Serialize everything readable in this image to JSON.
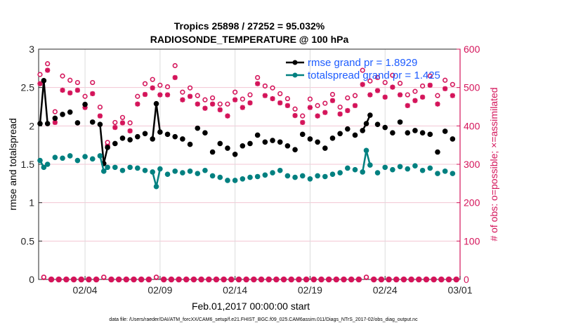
{
  "chart_data": {
    "type": "line",
    "title": "Tropics 25898 / 27252 = 95.032%",
    "subtitle": "RADIOSONDE_TEMPERATURE @ 100 hPa",
    "xlabel": "Feb.01,2017 00:00:00 start",
    "ylabel": "rmse and totalspread",
    "ylabel_right": "# of obs: o=possible; ×=assimilated",
    "footer": "data file: /Users/raeder/DAI/ATM_forcXX/CAM6_setup/f.e21.FHIST_BGC.f09_025.CAM6assim.011/Diags_NTrS_2017-02/obs_diag_output.nc",
    "xlim": [
      "2017-02-01",
      "2017-03-01"
    ],
    "ylim": [
      0,
      3
    ],
    "ylim_right": [
      0,
      600
    ],
    "grid": true,
    "legend_position": "top-right",
    "x_ticks": [
      {
        "date": "2017-02-04",
        "label": "02/04"
      },
      {
        "date": "2017-02-09",
        "label": "02/09"
      },
      {
        "date": "2017-02-14",
        "label": "02/14"
      },
      {
        "date": "2017-02-19",
        "label": "02/19"
      },
      {
        "date": "2017-02-24",
        "label": "02/24"
      },
      {
        "date": "2017-03-01",
        "label": "03/01"
      }
    ],
    "y_ticks": [
      "0",
      "0.5",
      "1",
      "1.5",
      "2",
      "2.5",
      "3"
    ],
    "y_ticks_right": [
      "0",
      "100",
      "200",
      "300",
      "400",
      "500",
      "600"
    ],
    "series": [
      {
        "name": "rmse grand pr = 1.8929",
        "key": "rmse",
        "color": "#000000"
      },
      {
        "name": "totalspread grand pr = 1.425",
        "key": "spread",
        "color": "#008080"
      }
    ],
    "obs_color": "#d4145a",
    "hours": [
      "00",
      "06",
      "12",
      "18"
    ],
    "days": [
      {
        "date": "2017-02-01",
        "rmse": [
          2.03,
          2.59,
          2.03,
          null
        ],
        "spread": [
          1.55,
          1.46,
          1.5,
          null
        ],
        "possible": [
          534,
          6,
          562,
          0
        ],
        "assimilated": [
          510,
          5,
          545,
          0
        ]
      },
      {
        "date": "2017-02-02",
        "rmse": [
          2.1,
          null,
          2.15,
          null
        ],
        "spread": [
          1.59,
          null,
          1.58,
          null
        ],
        "possible": [
          437,
          0,
          530,
          0
        ],
        "assimilated": [
          409,
          0,
          493,
          0
        ]
      },
      {
        "date": "2017-02-03",
        "rmse": [
          2.18,
          null,
          2.04,
          null
        ],
        "spread": [
          1.61,
          null,
          1.55,
          null
        ],
        "possible": [
          519,
          0,
          513,
          0
        ],
        "assimilated": [
          486,
          0,
          493,
          0
        ]
      },
      {
        "date": "2017-02-04",
        "rmse": [
          2.28,
          null,
          2.05,
          null
        ],
        "spread": [
          1.6,
          null,
          1.57,
          null
        ],
        "possible": [
          477,
          0,
          513,
          0
        ],
        "assimilated": [
          448,
          0,
          484,
          0
        ]
      },
      {
        "date": "2017-02-05",
        "rmse": [
          2.02,
          1.51,
          1.72,
          null
        ],
        "spread": [
          1.61,
          1.41,
          1.46,
          null
        ],
        "possible": [
          449,
          6,
          357,
          0
        ],
        "assimilated": [
          426,
          5,
          349,
          0
        ]
      },
      {
        "date": "2017-02-06",
        "rmse": [
          1.77,
          null,
          1.84,
          null
        ],
        "spread": [
          1.46,
          null,
          1.42,
          null
        ],
        "possible": [
          409,
          0,
          422,
          0
        ],
        "assimilated": [
          396,
          0,
          408,
          0
        ]
      },
      {
        "date": "2017-02-07",
        "rmse": [
          1.82,
          null,
          1.86,
          null
        ],
        "spread": [
          1.46,
          null,
          1.45,
          null
        ],
        "possible": [
          408,
          0,
          477,
          0
        ],
        "assimilated": [
          387,
          0,
          457,
          0
        ]
      },
      {
        "date": "2017-02-08",
        "rmse": [
          1.9,
          null,
          1.83,
          2.29
        ],
        "spread": [
          1.42,
          null,
          1.4,
          1.21
        ],
        "possible": [
          510,
          0,
          521,
          6
        ],
        "assimilated": [
          482,
          0,
          499,
          5
        ]
      },
      {
        "date": "2017-02-09",
        "rmse": [
          1.92,
          null,
          1.89,
          null
        ],
        "spread": [
          1.44,
          null,
          1.37,
          null
        ],
        "possible": [
          506,
          0,
          502,
          0
        ],
        "assimilated": [
          481,
          0,
          481,
          0
        ]
      },
      {
        "date": "2017-02-10",
        "rmse": [
          1.86,
          null,
          1.83,
          null
        ],
        "spread": [
          1.41,
          null,
          1.39,
          null
        ],
        "possible": [
          557,
          0,
          488,
          0
        ],
        "assimilated": [
          526,
          0,
          468,
          0
        ]
      },
      {
        "date": "2017-02-11",
        "rmse": [
          1.76,
          null,
          1.97,
          null
        ],
        "spread": [
          1.41,
          null,
          1.38,
          null
        ],
        "possible": [
          499,
          0,
          479,
          0
        ],
        "assimilated": [
          477,
          0,
          457,
          0
        ]
      },
      {
        "date": "2017-02-12",
        "rmse": [
          1.91,
          null,
          1.66,
          null
        ],
        "spread": [
          1.42,
          null,
          1.35,
          null
        ],
        "possible": [
          468,
          0,
          473,
          0
        ],
        "assimilated": [
          446,
          0,
          457,
          0
        ]
      },
      {
        "date": "2017-02-13",
        "rmse": [
          1.77,
          null,
          1.71,
          null
        ],
        "spread": [
          1.33,
          null,
          1.29,
          null
        ],
        "possible": [
          457,
          0,
          457,
          0
        ],
        "assimilated": [
          442,
          0,
          426,
          0
        ]
      },
      {
        "date": "2017-02-14",
        "rmse": [
          1.63,
          null,
          1.74,
          null
        ],
        "spread": [
          1.29,
          null,
          1.31,
          null
        ],
        "possible": [
          488,
          0,
          470,
          0
        ],
        "assimilated": [
          468,
          0,
          448,
          0
        ]
      },
      {
        "date": "2017-02-15",
        "rmse": [
          1.77,
          null,
          1.88,
          null
        ],
        "spread": [
          1.33,
          null,
          1.34,
          null
        ],
        "possible": [
          481,
          0,
          526,
          0
        ],
        "assimilated": [
          460,
          0,
          510,
          0
        ]
      },
      {
        "date": "2017-02-16",
        "rmse": [
          1.79,
          null,
          1.81,
          null
        ],
        "spread": [
          1.36,
          null,
          1.39,
          null
        ],
        "possible": [
          504,
          0,
          499,
          0
        ],
        "assimilated": [
          479,
          0,
          471,
          0
        ]
      },
      {
        "date": "2017-02-17",
        "rmse": [
          1.79,
          null,
          1.74,
          null
        ],
        "spread": [
          1.42,
          null,
          1.35,
          null
        ],
        "possible": [
          484,
          0,
          471,
          0
        ],
        "assimilated": [
          460,
          0,
          453,
          0
        ]
      },
      {
        "date": "2017-02-18",
        "rmse": [
          1.69,
          null,
          1.89,
          null
        ],
        "spread": [
          1.33,
          null,
          1.35,
          null
        ],
        "possible": [
          444,
          0,
          426,
          0
        ],
        "assimilated": [
          427,
          0,
          409,
          0
        ]
      },
      {
        "date": "2017-02-19",
        "rmse": [
          1.83,
          null,
          1.79,
          null
        ],
        "spread": [
          1.31,
          null,
          1.35,
          null
        ],
        "possible": [
          470,
          0,
          453,
          0
        ],
        "assimilated": [
          448,
          0,
          426,
          0
        ]
      },
      {
        "date": "2017-02-20",
        "rmse": [
          1.71,
          null,
          1.84,
          null
        ],
        "spread": [
          1.34,
          null,
          1.37,
          null
        ],
        "possible": [
          459,
          0,
          482,
          0
        ],
        "assimilated": [
          435,
          0,
          466,
          0
        ]
      },
      {
        "date": "2017-02-21",
        "rmse": [
          1.9,
          null,
          1.96,
          null
        ],
        "spread": [
          1.39,
          null,
          1.45,
          null
        ],
        "possible": [
          449,
          0,
          473,
          0
        ],
        "assimilated": [
          431,
          0,
          440,
          0
        ]
      },
      {
        "date": "2017-02-22",
        "rmse": [
          1.88,
          null,
          1.94,
          2.03
        ],
        "spread": [
          1.43,
          null,
          1.4,
          1.68
        ],
        "possible": [
          479,
          0,
          545,
          6
        ],
        "assimilated": [
          453,
          0,
          508,
          5
        ]
      },
      {
        "date": "2017-02-23",
        "rmse": [
          2.14,
          null,
          2.02,
          null
        ],
        "spread": [
          1.49,
          null,
          1.39,
          null
        ],
        "possible": [
          517,
          0,
          526,
          0
        ],
        "assimilated": [
          481,
          0,
          492,
          0
        ]
      },
      {
        "date": "2017-02-24",
        "rmse": [
          1.98,
          null,
          1.91,
          null
        ],
        "spread": [
          1.46,
          null,
          1.43,
          null
        ],
        "possible": [
          513,
          0,
          532,
          0
        ],
        "assimilated": [
          475,
          0,
          501,
          0
        ]
      },
      {
        "date": "2017-02-25",
        "rmse": [
          2.05,
          null,
          1.91,
          null
        ],
        "spread": [
          1.47,
          null,
          1.44,
          null
        ],
        "possible": [
          511,
          0,
          481,
          0
        ],
        "assimilated": [
          481,
          0,
          453,
          0
        ]
      },
      {
        "date": "2017-02-26",
        "rmse": [
          1.94,
          null,
          1.91,
          null
        ],
        "spread": [
          1.48,
          null,
          1.42,
          null
        ],
        "possible": [
          490,
          0,
          504,
          0
        ],
        "assimilated": [
          466,
          0,
          475,
          0
        ]
      },
      {
        "date": "2017-02-27",
        "rmse": [
          1.89,
          null,
          1.66,
          null
        ],
        "spread": [
          1.45,
          null,
          1.38,
          null
        ],
        "possible": [
          530,
          0,
          479,
          0
        ],
        "assimilated": [
          506,
          0,
          457,
          0
        ]
      },
      {
        "date": "2017-02-28",
        "rmse": [
          1.93,
          null,
          1.83,
          null
        ],
        "spread": [
          1.41,
          null,
          1.38,
          null
        ],
        "possible": [
          519,
          0,
          508,
          0
        ],
        "assimilated": [
          497,
          0,
          479,
          0
        ]
      }
    ]
  }
}
